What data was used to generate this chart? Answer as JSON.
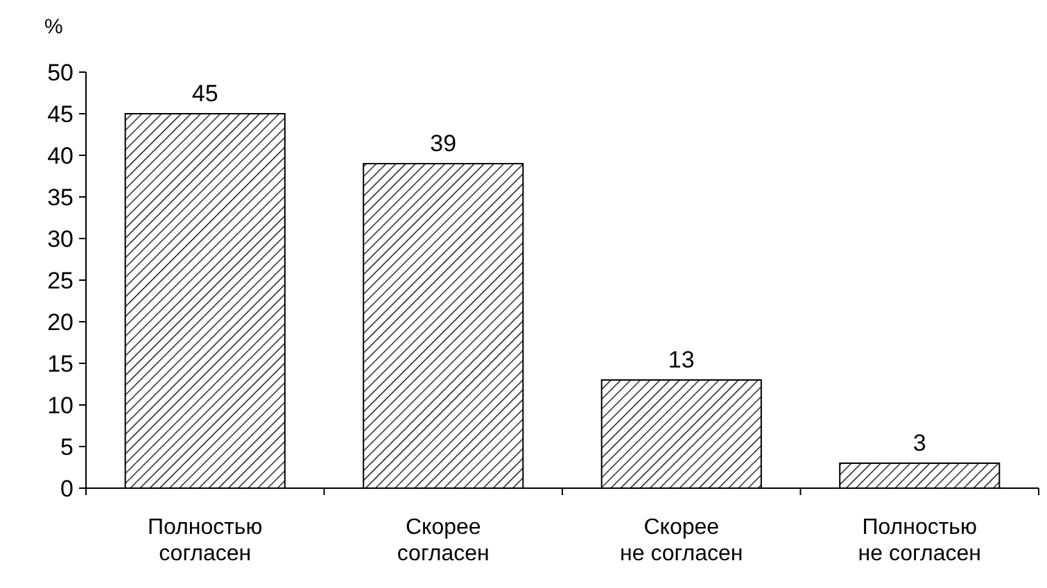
{
  "chart_data": {
    "type": "bar",
    "ylabel": "%",
    "categories": [
      "Полностью\nсогласен",
      "Скорее\nсогласен",
      "Скорее\nне согласен",
      "Полностью\nне согласен"
    ],
    "values": [
      45,
      39,
      13,
      3
    ],
    "color": "#000000",
    "ylim": [
      0,
      50
    ],
    "yticks": [
      0,
      5,
      10,
      15,
      20,
      25,
      30,
      35,
      40,
      45,
      50
    ],
    "grid": false,
    "data_labels": true
  }
}
